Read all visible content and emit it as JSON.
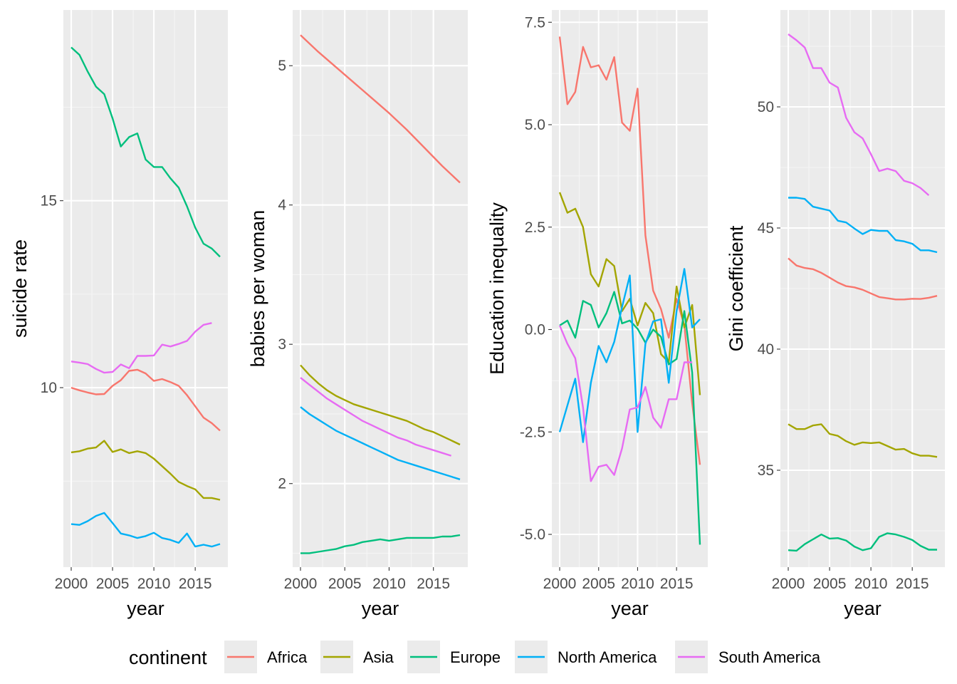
{
  "colors": {
    "panel_bg": "#EBEBEB",
    "grid_major": "#FFFFFF",
    "grid_minor": "#F5F5F5",
    "tick_text": "#4D4D4D",
    "tick_mark": "#333333",
    "label_text": "#000000"
  },
  "legend": {
    "title": "continent",
    "position": "bottom",
    "entries": [
      {
        "name": "Africa",
        "color": "#F8766D"
      },
      {
        "name": "Asia",
        "color": "#A3A500"
      },
      {
        "name": "Europe",
        "color": "#00BF7D"
      },
      {
        "name": "North America",
        "color": "#00B0F6"
      },
      {
        "name": "South America",
        "color": "#E76BF3"
      }
    ]
  },
  "chart_data": [
    {
      "type": "line",
      "xlabel": "year",
      "ylabel": "suicide rate",
      "xlim": [
        2000,
        2018
      ],
      "ylim": [
        5.2,
        20.1
      ],
      "x_ticks": [
        2000,
        2005,
        2010,
        2015
      ],
      "y_ticks": [
        10,
        15
      ],
      "y_tick_labels": [
        "10",
        "15"
      ],
      "grid": true,
      "series": [
        {
          "name": "Africa",
          "color": "#F8766D",
          "x": [
            2000,
            2001,
            2002,
            2003,
            2004,
            2005,
            2006,
            2007,
            2008,
            2009,
            2010,
            2011,
            2012,
            2013,
            2014,
            2015,
            2016,
            2017,
            2018
          ],
          "y": [
            10.0,
            9.93,
            9.87,
            9.82,
            9.83,
            10.05,
            10.2,
            10.45,
            10.48,
            10.38,
            10.18,
            10.23,
            10.15,
            10.05,
            9.8,
            9.5,
            9.2,
            9.05,
            8.85
          ]
        },
        {
          "name": "Asia",
          "color": "#A3A500",
          "x": [
            2000,
            2001,
            2002,
            2003,
            2004,
            2005,
            2006,
            2007,
            2008,
            2009,
            2010,
            2011,
            2012,
            2013,
            2014,
            2015,
            2016,
            2017,
            2018
          ],
          "y": [
            8.27,
            8.3,
            8.37,
            8.4,
            8.58,
            8.28,
            8.35,
            8.25,
            8.3,
            8.25,
            8.1,
            7.9,
            7.7,
            7.48,
            7.37,
            7.28,
            7.05,
            7.05,
            7.0
          ]
        },
        {
          "name": "Europe",
          "color": "#00BF7D",
          "x": [
            2000,
            2001,
            2002,
            2003,
            2004,
            2005,
            2006,
            2007,
            2008,
            2009,
            2010,
            2011,
            2012,
            2013,
            2014,
            2015,
            2016,
            2017,
            2018
          ],
          "y": [
            19.1,
            18.9,
            18.45,
            18.05,
            17.85,
            17.2,
            16.45,
            16.7,
            16.8,
            16.1,
            15.9,
            15.9,
            15.6,
            15.35,
            14.85,
            14.28,
            13.85,
            13.72,
            13.5
          ]
        },
        {
          "name": "North America",
          "color": "#00B0F6",
          "x": [
            2000,
            2001,
            2002,
            2003,
            2004,
            2005,
            2006,
            2007,
            2008,
            2009,
            2010,
            2011,
            2012,
            2013,
            2014,
            2015,
            2016,
            2017,
            2018
          ],
          "y": [
            6.35,
            6.33,
            6.43,
            6.57,
            6.65,
            6.38,
            6.1,
            6.05,
            5.98,
            6.03,
            6.12,
            5.98,
            5.93,
            5.85,
            6.1,
            5.75,
            5.8,
            5.75,
            5.82
          ]
        },
        {
          "name": "South America",
          "color": "#E76BF3",
          "x": [
            2000,
            2001,
            2002,
            2003,
            2004,
            2005,
            2006,
            2007,
            2008,
            2009,
            2010,
            2011,
            2012,
            2013,
            2014,
            2015,
            2016,
            2017
          ],
          "y": [
            10.7,
            10.67,
            10.63,
            10.5,
            10.4,
            10.42,
            10.62,
            10.52,
            10.85,
            10.85,
            10.86,
            11.15,
            11.1,
            11.17,
            11.25,
            11.5,
            11.68,
            11.73
          ]
        }
      ]
    },
    {
      "type": "line",
      "xlabel": "year",
      "ylabel": "babies per woman",
      "xlim": [
        2000,
        2018
      ],
      "ylim": [
        1.4,
        5.4
      ],
      "x_ticks": [
        2000,
        2005,
        2010,
        2015
      ],
      "y_ticks": [
        2,
        3,
        4,
        5
      ],
      "y_tick_labels": [
        "2",
        "3",
        "4",
        "5"
      ],
      "grid": true,
      "series": [
        {
          "name": "Africa",
          "color": "#F8766D",
          "x": [
            2000,
            2002,
            2004,
            2006,
            2008,
            2010,
            2012,
            2014,
            2016,
            2018
          ],
          "y": [
            5.22,
            5.1,
            4.99,
            4.88,
            4.77,
            4.66,
            4.54,
            4.41,
            4.28,
            4.16
          ]
        },
        {
          "name": "Asia",
          "color": "#A3A500",
          "x": [
            2000,
            2001,
            2002,
            2003,
            2004,
            2005,
            2006,
            2007,
            2008,
            2009,
            2010,
            2011,
            2012,
            2013,
            2014,
            2015,
            2016,
            2017,
            2018
          ],
          "y": [
            2.85,
            2.78,
            2.72,
            2.67,
            2.63,
            2.6,
            2.57,
            2.55,
            2.53,
            2.51,
            2.49,
            2.47,
            2.45,
            2.42,
            2.39,
            2.37,
            2.34,
            2.31,
            2.28
          ]
        },
        {
          "name": "Europe",
          "color": "#00BF7D",
          "x": [
            2000,
            2001,
            2002,
            2003,
            2004,
            2005,
            2006,
            2007,
            2008,
            2009,
            2010,
            2011,
            2012,
            2013,
            2014,
            2015,
            2016,
            2017,
            2018
          ],
          "y": [
            1.5,
            1.5,
            1.51,
            1.52,
            1.53,
            1.55,
            1.56,
            1.58,
            1.59,
            1.6,
            1.59,
            1.6,
            1.61,
            1.61,
            1.61,
            1.61,
            1.62,
            1.62,
            1.63
          ]
        },
        {
          "name": "North America",
          "color": "#00B0F6",
          "x": [
            2000,
            2001,
            2002,
            2003,
            2004,
            2005,
            2006,
            2007,
            2008,
            2009,
            2010,
            2011,
            2012,
            2013,
            2014,
            2015,
            2016,
            2017,
            2018
          ],
          "y": [
            2.55,
            2.5,
            2.46,
            2.42,
            2.38,
            2.35,
            2.32,
            2.29,
            2.26,
            2.23,
            2.2,
            2.17,
            2.15,
            2.13,
            2.11,
            2.09,
            2.07,
            2.05,
            2.03
          ]
        },
        {
          "name": "South America",
          "color": "#E76BF3",
          "x": [
            2000,
            2001,
            2002,
            2003,
            2004,
            2005,
            2006,
            2007,
            2008,
            2009,
            2010,
            2011,
            2012,
            2013,
            2014,
            2015,
            2016,
            2017
          ],
          "y": [
            2.76,
            2.71,
            2.66,
            2.61,
            2.57,
            2.53,
            2.49,
            2.45,
            2.42,
            2.39,
            2.36,
            2.33,
            2.31,
            2.28,
            2.26,
            2.24,
            2.22,
            2.2
          ]
        }
      ]
    },
    {
      "type": "line",
      "xlabel": "year",
      "ylabel": "Education inequality",
      "xlim": [
        2000,
        2018
      ],
      "ylim": [
        -5.8,
        7.8
      ],
      "x_ticks": [
        2000,
        2005,
        2010,
        2015
      ],
      "y_ticks": [
        -5,
        -2.5,
        0,
        2.5,
        5,
        7.5
      ],
      "y_tick_labels": [
        "-5.0",
        "-2.5",
        "0.0",
        "2.5",
        "5.0",
        "7.5"
      ],
      "grid": true,
      "series": [
        {
          "name": "Africa",
          "color": "#F8766D",
          "x": [
            2000,
            2001,
            2002,
            2003,
            2004,
            2005,
            2006,
            2007,
            2008,
            2009,
            2010,
            2011,
            2012,
            2013,
            2014,
            2015,
            2016,
            2017,
            2018
          ],
          "y": [
            7.15,
            5.5,
            5.8,
            6.9,
            6.4,
            6.45,
            6.1,
            6.65,
            5.05,
            4.85,
            5.88,
            2.3,
            0.95,
            0.5,
            -0.2,
            0.75,
            0.1,
            -1.8,
            -3.3
          ]
        },
        {
          "name": "Asia",
          "color": "#A3A500",
          "x": [
            2000,
            2001,
            2002,
            2003,
            2004,
            2005,
            2006,
            2007,
            2008,
            2009,
            2010,
            2011,
            2012,
            2013,
            2014,
            2015,
            2016,
            2017,
            2018
          ],
          "y": [
            3.35,
            2.85,
            2.95,
            2.5,
            1.35,
            1.05,
            1.72,
            1.55,
            0.45,
            0.75,
            0.1,
            0.65,
            0.4,
            -0.6,
            -0.8,
            1.05,
            0.05,
            0.6,
            -1.6
          ]
        },
        {
          "name": "Europe",
          "color": "#00BF7D",
          "x": [
            2000,
            2001,
            2002,
            2003,
            2004,
            2005,
            2006,
            2007,
            2008,
            2009,
            2010,
            2011,
            2012,
            2013,
            2014,
            2015,
            2016,
            2017,
            2018
          ],
          "y": [
            0.1,
            0.22,
            -0.2,
            0.7,
            0.6,
            0.05,
            0.4,
            0.92,
            0.15,
            0.22,
            0.02,
            -0.32,
            0.0,
            -0.18,
            -0.85,
            -0.72,
            0.45,
            -1.05,
            -5.25
          ]
        },
        {
          "name": "North America",
          "color": "#00B0F6",
          "x": [
            2000,
            2001,
            2002,
            2003,
            2004,
            2005,
            2006,
            2007,
            2008,
            2009,
            2010,
            2011,
            2012,
            2013,
            2014,
            2015,
            2016,
            2017,
            2018
          ],
          "y": [
            -2.5,
            -1.85,
            -1.2,
            -2.75,
            -1.3,
            -0.4,
            -0.8,
            -0.3,
            0.55,
            1.32,
            -2.5,
            -0.35,
            0.2,
            0.25,
            -1.3,
            0.45,
            1.48,
            0.05,
            0.25
          ]
        },
        {
          "name": "South America",
          "color": "#E76BF3",
          "x": [
            2000,
            2001,
            2002,
            2003,
            2004,
            2005,
            2006,
            2007,
            2008,
            2009,
            2010,
            2011,
            2012,
            2013,
            2014,
            2015,
            2016,
            2017
          ],
          "y": [
            0.1,
            -0.35,
            -0.7,
            -1.9,
            -3.7,
            -3.35,
            -3.3,
            -3.55,
            -2.9,
            -1.95,
            -1.9,
            -1.4,
            -2.15,
            -2.4,
            -1.7,
            -1.7,
            -0.8,
            -0.8
          ]
        }
      ]
    },
    {
      "type": "line",
      "xlabel": "year",
      "ylabel": "Gini coefficient",
      "xlim": [
        2000,
        2018
      ],
      "ylim": [
        31.0,
        54.0
      ],
      "x_ticks": [
        2000,
        2005,
        2010,
        2015
      ],
      "y_ticks": [
        35,
        40,
        45,
        50
      ],
      "y_tick_labels": [
        "35",
        "40",
        "45",
        "50"
      ],
      "grid": true,
      "series": [
        {
          "name": "Africa",
          "color": "#F8766D",
          "x": [
            2000,
            2001,
            2002,
            2003,
            2004,
            2005,
            2006,
            2007,
            2008,
            2009,
            2010,
            2011,
            2012,
            2013,
            2014,
            2015,
            2016,
            2017,
            2018
          ],
          "y": [
            43.75,
            43.45,
            43.35,
            43.3,
            43.15,
            42.95,
            42.75,
            42.6,
            42.55,
            42.45,
            42.3,
            42.15,
            42.1,
            42.05,
            42.05,
            42.08,
            42.07,
            42.12,
            42.2
          ]
        },
        {
          "name": "Asia",
          "color": "#A3A500",
          "x": [
            2000,
            2001,
            2002,
            2003,
            2004,
            2005,
            2006,
            2007,
            2008,
            2009,
            2010,
            2011,
            2012,
            2013,
            2014,
            2015,
            2016,
            2017,
            2018
          ],
          "y": [
            36.9,
            36.7,
            36.7,
            36.85,
            36.9,
            36.5,
            36.42,
            36.2,
            36.05,
            36.15,
            36.12,
            36.15,
            36.0,
            35.85,
            35.88,
            35.7,
            35.6,
            35.6,
            35.55
          ]
        },
        {
          "name": "Europe",
          "color": "#00BF7D",
          "x": [
            2000,
            2001,
            2002,
            2003,
            2004,
            2005,
            2006,
            2007,
            2008,
            2009,
            2010,
            2011,
            2012,
            2013,
            2014,
            2015,
            2016,
            2017,
            2018
          ],
          "y": [
            31.7,
            31.68,
            31.95,
            32.15,
            32.35,
            32.18,
            32.2,
            32.1,
            31.85,
            31.7,
            31.78,
            32.25,
            32.4,
            32.35,
            32.25,
            32.12,
            31.88,
            31.72,
            31.72
          ]
        },
        {
          "name": "North America",
          "color": "#00B0F6",
          "x": [
            2000,
            2001,
            2002,
            2003,
            2004,
            2005,
            2006,
            2007,
            2008,
            2009,
            2010,
            2011,
            2012,
            2013,
            2014,
            2015,
            2016,
            2017,
            2018
          ],
          "y": [
            46.25,
            46.25,
            46.2,
            45.88,
            45.8,
            45.72,
            45.3,
            45.23,
            44.98,
            44.75,
            44.92,
            44.88,
            44.88,
            44.5,
            44.45,
            44.35,
            44.08,
            44.08,
            44.0
          ]
        },
        {
          "name": "South America",
          "color": "#E76BF3",
          "x": [
            2000,
            2001,
            2002,
            2003,
            2004,
            2005,
            2006,
            2007,
            2008,
            2009,
            2010,
            2011,
            2012,
            2013,
            2014,
            2015,
            2016,
            2017
          ],
          "y": [
            53.0,
            52.75,
            52.45,
            51.6,
            51.6,
            51.0,
            50.8,
            49.55,
            48.95,
            48.7,
            48.05,
            47.35,
            47.45,
            47.35,
            46.95,
            46.85,
            46.65,
            46.35
          ]
        }
      ]
    }
  ]
}
